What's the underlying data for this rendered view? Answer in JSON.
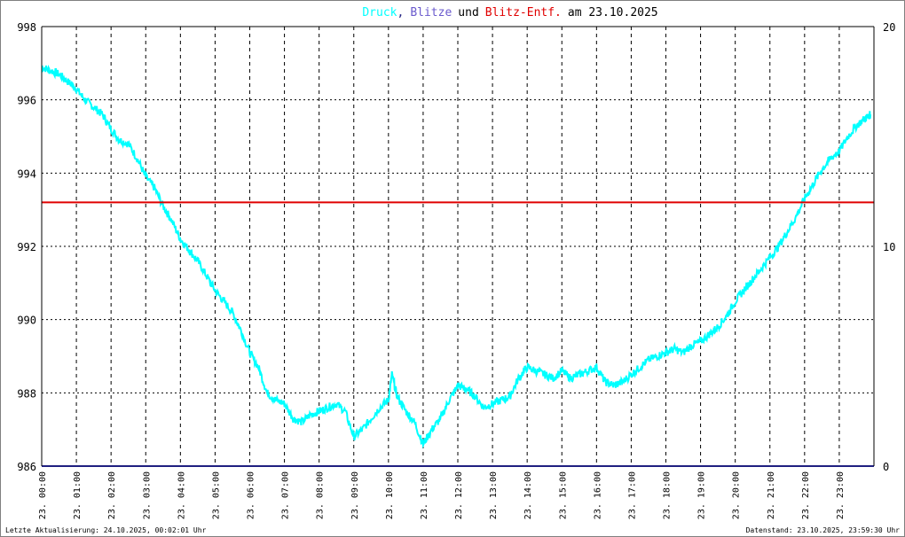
{
  "chart_data": {
    "type": "line",
    "title": {
      "part1": "Druck",
      "sep1": ",",
      "part2": "Blitze",
      "part3": "und",
      "part4": "Blitz-Entf.",
      "part5": "am 23.10.2025"
    },
    "colors": {
      "druck": "#00ffff",
      "blitze": "#202080",
      "blitz_entf": "#e00000",
      "grid": "#000000",
      "right_tick_10": "#e00000"
    },
    "y_left": {
      "range": [
        986,
        998
      ],
      "ticks": [
        "998",
        "996",
        "994",
        "992",
        "990",
        "988",
        "986"
      ]
    },
    "y_right": {
      "range": [
        0,
        20
      ],
      "ticks": [
        "20",
        "10",
        "0"
      ]
    },
    "x_ticks": [
      "23. 00:00",
      "23. 01:00",
      "23. 02:00",
      "23. 03:00",
      "23. 04:00",
      "23. 05:00",
      "23. 06:00",
      "23. 07:00",
      "23. 08:00",
      "23. 09:00",
      "23. 10:00",
      "23. 11:00",
      "23. 12:00",
      "23. 13:00",
      "23. 14:00",
      "23. 15:00",
      "23. 16:00",
      "23. 17:00",
      "23. 18:00",
      "23. 19:00",
      "23. 20:00",
      "23. 21:00",
      "23. 22:00",
      "23. 23:00"
    ],
    "x_range_hours": [
      0,
      24
    ],
    "series": [
      {
        "name": "Druck",
        "axis": "left",
        "x": [
          0,
          0.25,
          0.5,
          0.75,
          1.0,
          1.25,
          1.5,
          1.75,
          2.0,
          2.25,
          2.5,
          2.75,
          3.0,
          3.25,
          3.5,
          3.75,
          4.0,
          4.25,
          4.5,
          4.75,
          5.0,
          5.25,
          5.5,
          5.75,
          6.0,
          6.25,
          6.5,
          6.75,
          7.0,
          7.25,
          7.5,
          7.75,
          8.0,
          8.25,
          8.5,
          8.75,
          9.0,
          9.25,
          9.5,
          9.75,
          10.0,
          10.1,
          10.25,
          10.5,
          10.75,
          11.0,
          11.25,
          11.5,
          11.75,
          12.0,
          12.25,
          12.5,
          12.75,
          13.0,
          13.25,
          13.5,
          13.75,
          14.0,
          14.25,
          14.5,
          14.75,
          15.0,
          15.25,
          15.5,
          15.75,
          16.0,
          16.25,
          16.5,
          16.75,
          17.0,
          17.25,
          17.5,
          17.75,
          18.0,
          18.25,
          18.5,
          18.75,
          19.0,
          19.25,
          19.5,
          19.75,
          20.0,
          20.25,
          20.5,
          20.75,
          21.0,
          21.25,
          21.5,
          21.75,
          22.0,
          22.25,
          22.5,
          22.75,
          23.0,
          23.25,
          23.5,
          23.75,
          23.9
        ],
        "values": [
          996.9,
          996.8,
          996.7,
          996.5,
          996.3,
          996.0,
          995.8,
          995.6,
          995.2,
          994.9,
          994.8,
          994.4,
          993.9,
          993.6,
          993.1,
          992.7,
          992.2,
          991.9,
          991.6,
          991.2,
          990.8,
          990.5,
          990.2,
          989.7,
          989.1,
          988.7,
          988.0,
          987.8,
          987.7,
          987.3,
          987.2,
          987.4,
          987.5,
          987.6,
          987.7,
          987.5,
          986.8,
          987.0,
          987.3,
          987.6,
          987.8,
          988.5,
          987.9,
          987.5,
          987.2,
          986.6,
          987.0,
          987.3,
          987.8,
          988.2,
          988.1,
          987.9,
          987.6,
          987.7,
          987.8,
          987.9,
          988.4,
          988.7,
          988.6,
          988.5,
          988.4,
          988.6,
          988.4,
          988.5,
          988.6,
          988.7,
          988.3,
          988.2,
          988.3,
          988.5,
          988.7,
          988.9,
          989.0,
          989.1,
          989.2,
          989.1,
          989.3,
          989.4,
          989.6,
          989.8,
          990.1,
          990.5,
          990.8,
          991.1,
          991.4,
          991.7,
          992.0,
          992.4,
          992.8,
          993.3,
          993.7,
          994.1,
          994.4,
          994.6,
          995.0,
          995.3,
          995.5,
          995.6
        ]
      },
      {
        "name": "Blitze",
        "axis": "right",
        "x": [
          0,
          24
        ],
        "values": [
          0,
          0
        ]
      },
      {
        "name": "Blitz-Entf.",
        "axis": "right",
        "x": [
          0,
          24
        ],
        "values": [
          12,
          12
        ]
      }
    ],
    "grid": true
  },
  "footer": {
    "left": "Letzte Aktualisierung: 24.10.2025, 00:02:01 Uhr",
    "right": "Datenstand: 23.10.2025, 23:59:30 Uhr"
  }
}
